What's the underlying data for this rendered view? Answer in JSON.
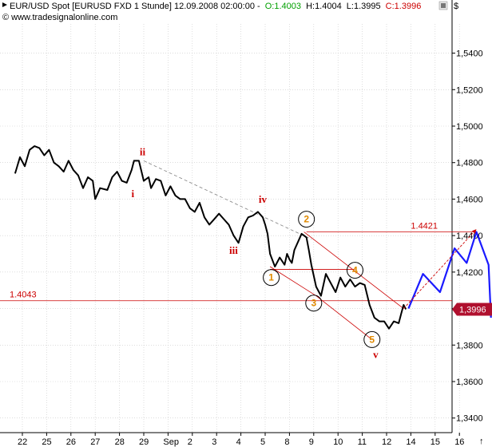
{
  "header": {
    "title": "EUR/USD Spot [EURUSD FXD  1 Stunde] 12.09.2008 02:00:00 -",
    "open": "O:1.4003",
    "high": "H:1.4004",
    "low": "L:1.3995",
    "close": "C:1.3996",
    "source": "© www.tradesignalonline.com",
    "currency_label": "$",
    "colors": {
      "open": "#00a000",
      "close": "#cc0000",
      "text": "#000000"
    }
  },
  "scroll": {
    "up_arrow": "↑"
  },
  "chart_data": {
    "type": "line",
    "title": "EUR/USD Spot [EURUSD FXD  1 Stunde] 12.09.2008 02:00:00",
    "xlabel": "",
    "ylabel": "",
    "ylim": [
      1.332,
      1.556
    ],
    "y_ticks": [
      "1,3400",
      "1,3600",
      "1,3800",
      "1,4000",
      "1,4200",
      "1,4400",
      "1,4600",
      "1,4800",
      "1,5000",
      "1,5200",
      "1,5400"
    ],
    "y_tick_values": [
      1.34,
      1.36,
      1.38,
      1.4,
      1.42,
      1.44,
      1.46,
      1.48,
      1.5,
      1.52,
      1.54
    ],
    "x_ticks": [
      "22",
      "25",
      "26",
      "27",
      "28",
      "29",
      "Sep",
      "2",
      "3",
      "4",
      "5",
      "8",
      "9",
      "10",
      "11",
      "12",
      "14",
      "15",
      "16"
    ],
    "x_tick_index": [
      0,
      1,
      2,
      3,
      4,
      5,
      6,
      7,
      8,
      9,
      10,
      11,
      12,
      13,
      14,
      15,
      16,
      17,
      18
    ],
    "xlim_index": [
      -0.3,
      19.3
    ],
    "current_price": "1,3996",
    "current_price_value": 1.3996,
    "series": [
      {
        "role": "price",
        "color": "#000000",
        "points": [
          [
            -0.3,
            1.474
          ],
          [
            -0.1,
            1.483
          ],
          [
            0.1,
            1.478
          ],
          [
            0.3,
            1.487
          ],
          [
            0.5,
            1.489
          ],
          [
            0.7,
            1.488
          ],
          [
            0.9,
            1.484
          ],
          [
            1.1,
            1.487
          ],
          [
            1.3,
            1.48
          ],
          [
            1.5,
            1.478
          ],
          [
            1.7,
            1.475
          ],
          [
            1.9,
            1.481
          ],
          [
            2.1,
            1.476
          ],
          [
            2.3,
            1.473
          ],
          [
            2.5,
            1.466
          ],
          [
            2.7,
            1.472
          ],
          [
            2.9,
            1.47
          ],
          [
            3.0,
            1.46
          ],
          [
            3.2,
            1.466
          ],
          [
            3.5,
            1.465
          ],
          [
            3.7,
            1.472
          ],
          [
            3.9,
            1.475
          ],
          [
            4.1,
            1.47
          ],
          [
            4.3,
            1.469
          ],
          [
            4.5,
            1.476
          ],
          [
            4.6,
            1.481
          ],
          [
            4.8,
            1.481
          ],
          [
            5.0,
            1.47
          ],
          [
            5.2,
            1.472
          ],
          [
            5.3,
            1.466
          ],
          [
            5.5,
            1.471
          ],
          [
            5.7,
            1.47
          ],
          [
            5.9,
            1.462
          ],
          [
            6.1,
            1.467
          ],
          [
            6.3,
            1.462
          ],
          [
            6.5,
            1.46
          ],
          [
            6.7,
            1.46
          ],
          [
            6.9,
            1.455
          ],
          [
            7.1,
            1.453
          ],
          [
            7.3,
            1.458
          ],
          [
            7.5,
            1.45
          ],
          [
            7.7,
            1.446
          ],
          [
            7.9,
            1.449
          ],
          [
            8.1,
            1.452
          ],
          [
            8.3,
            1.449
          ],
          [
            8.5,
            1.446
          ],
          [
            8.7,
            1.44
          ],
          [
            8.9,
            1.436
          ],
          [
            9.1,
            1.445
          ],
          [
            9.3,
            1.45
          ],
          [
            9.5,
            1.451
          ],
          [
            9.7,
            1.453
          ],
          [
            9.9,
            1.45
          ],
          [
            10.0,
            1.446
          ],
          [
            10.1,
            1.441
          ],
          [
            10.2,
            1.43
          ],
          [
            10.4,
            1.423
          ],
          [
            10.6,
            1.428
          ],
          [
            10.8,
            1.424
          ],
          [
            10.9,
            1.43
          ],
          [
            11.0,
            1.427
          ],
          [
            11.1,
            1.425
          ],
          [
            11.2,
            1.432
          ],
          [
            11.4,
            1.438
          ],
          [
            11.5,
            1.441
          ],
          [
            11.6,
            1.44
          ],
          [
            11.7,
            1.439
          ],
          [
            11.8,
            1.432
          ],
          [
            11.9,
            1.424
          ],
          [
            12.0,
            1.418
          ],
          [
            12.1,
            1.412
          ],
          [
            12.3,
            1.407
          ],
          [
            12.5,
            1.419
          ],
          [
            12.7,
            1.414
          ],
          [
            12.9,
            1.409
          ],
          [
            13.1,
            1.417
          ],
          [
            13.3,
            1.412
          ],
          [
            13.5,
            1.416
          ],
          [
            13.7,
            1.412
          ],
          [
            13.9,
            1.414
          ],
          [
            14.1,
            1.413
          ],
          [
            14.3,
            1.402
          ],
          [
            14.5,
            1.395
          ],
          [
            14.7,
            1.393
          ],
          [
            14.9,
            1.393
          ],
          [
            15.1,
            1.389
          ],
          [
            15.3,
            1.393
          ],
          [
            15.5,
            1.392
          ],
          [
            15.6,
            1.397
          ],
          [
            15.7,
            1.402
          ],
          [
            15.8,
            1.3996
          ]
        ]
      },
      {
        "role": "projection",
        "color": "#1a1aff",
        "points": [
          [
            15.9,
            1.4
          ],
          [
            16.5,
            1.419
          ],
          [
            17.2,
            1.409
          ],
          [
            17.8,
            1.433
          ],
          [
            18.3,
            1.425
          ],
          [
            18.7,
            1.442
          ],
          [
            19.2,
            1.424
          ],
          [
            19.3,
            1.395
          ]
        ]
      },
      {
        "role": "projection-arrow",
        "color": "#cc0000",
        "points": [
          [
            15.7,
            1.4
          ],
          [
            18.7,
            1.4435
          ]
        ]
      }
    ],
    "levels": [
      {
        "value": 1.4043,
        "label": "1.4043",
        "color": "#cc0000"
      },
      {
        "value": 1.4421,
        "label": "1.4421",
        "color": "#cc0000"
      }
    ],
    "annotations": [
      {
        "text": "ii",
        "x": 4.95,
        "y": 1.484,
        "style": "red"
      },
      {
        "text": "i",
        "x": 4.55,
        "y": 1.461,
        "style": "red"
      },
      {
        "text": "iii",
        "x": 8.7,
        "y": 1.43,
        "style": "red"
      },
      {
        "text": "iv",
        "x": 9.9,
        "y": 1.458,
        "style": "red"
      },
      {
        "text": "v",
        "x": 14.55,
        "y": 1.373,
        "style": "red"
      },
      {
        "text": "1",
        "x": 10.25,
        "y": 1.417,
        "style": "circle"
      },
      {
        "text": "2",
        "x": 11.7,
        "y": 1.449,
        "style": "circle"
      },
      {
        "text": "3",
        "x": 12.0,
        "y": 1.403,
        "style": "circle"
      },
      {
        "text": "4",
        "x": 13.7,
        "y": 1.421,
        "style": "circle"
      },
      {
        "text": "5",
        "x": 14.4,
        "y": 1.383,
        "style": "circle"
      }
    ]
  }
}
